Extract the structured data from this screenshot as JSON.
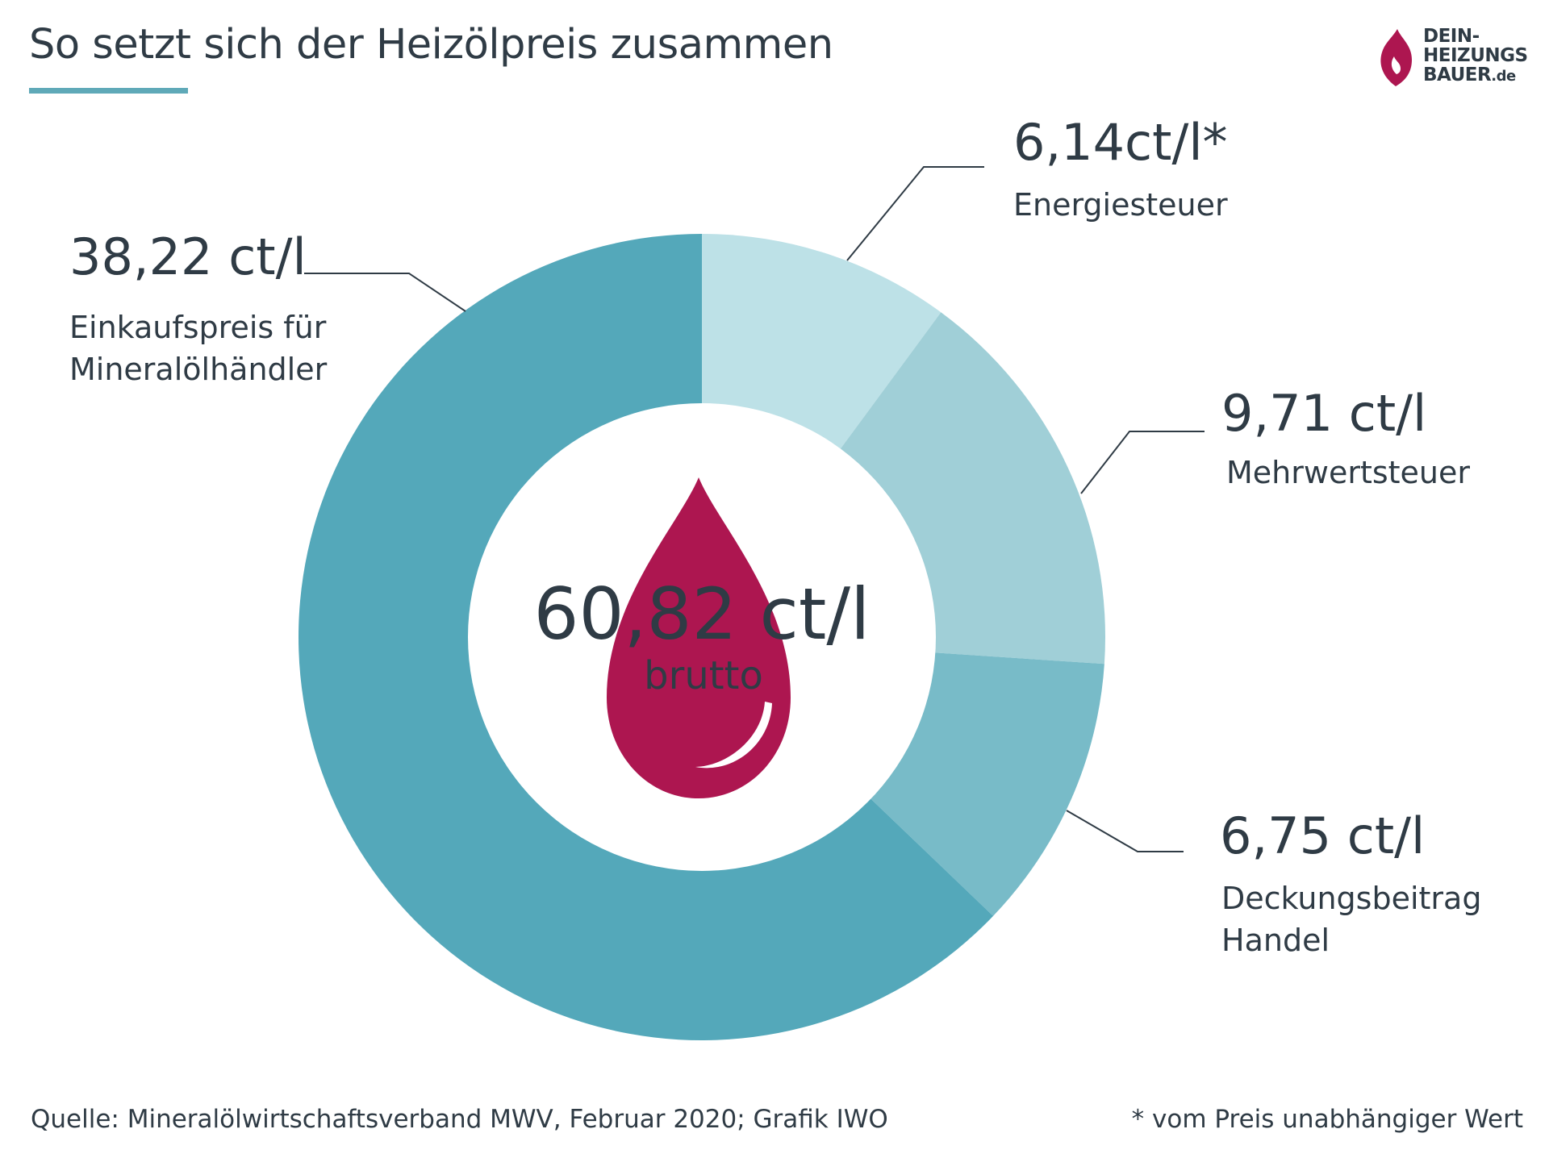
{
  "header": {
    "title": "So setzt sich der Heizölpreis zusammen",
    "logo_line1": "DEIN-",
    "logo_line2": "HEIZUNGS",
    "logo_line3": "BAUER",
    "logo_suffix": ".de"
  },
  "center": {
    "value": "60,82 ct/l",
    "sub": "brutto"
  },
  "labels": {
    "einkauf_value": "38,22 ct/l",
    "einkauf_name_1": "Einkaufspreis für",
    "einkauf_name_2": "Mineralölhändler",
    "energie_value": "6,14ct/l*",
    "energie_name": "Energiesteuer",
    "mwst_value": "9,71 ct/l",
    "mwst_name": "Mehrwertsteuer",
    "handel_value": "6,75 ct/l",
    "handel_name_1": "Deckungsbeitrag",
    "handel_name_2": "Handel"
  },
  "footer": {
    "source": "Quelle: Mineralölwirtschaftsverband MWV, Februar 2020; Grafik IWO",
    "footnote": "* vom Preis unabhängiger Wert"
  },
  "colors": {
    "einkauf": "#54a8ba",
    "energie": "#bde1e7",
    "mwst": "#a0cfd7",
    "handel": "#78bbc8",
    "drop": "#ad1650",
    "accent": "#5fa9b8"
  },
  "chart_data": {
    "type": "pie",
    "title": "So setzt sich der Heizölpreis zusammen",
    "unit": "ct/l",
    "total": 60.82,
    "slices": [
      {
        "label": "Energiesteuer",
        "value": 6.14,
        "color": "#bde1e7"
      },
      {
        "label": "Mehrwertsteuer",
        "value": 9.71,
        "color": "#a0cfd7"
      },
      {
        "label": "Deckungsbeitrag Handel",
        "value": 6.75,
        "color": "#78bbc8"
      },
      {
        "label": "Einkaufspreis für Mineralölhändler",
        "value": 38.22,
        "color": "#54a8ba"
      }
    ]
  }
}
